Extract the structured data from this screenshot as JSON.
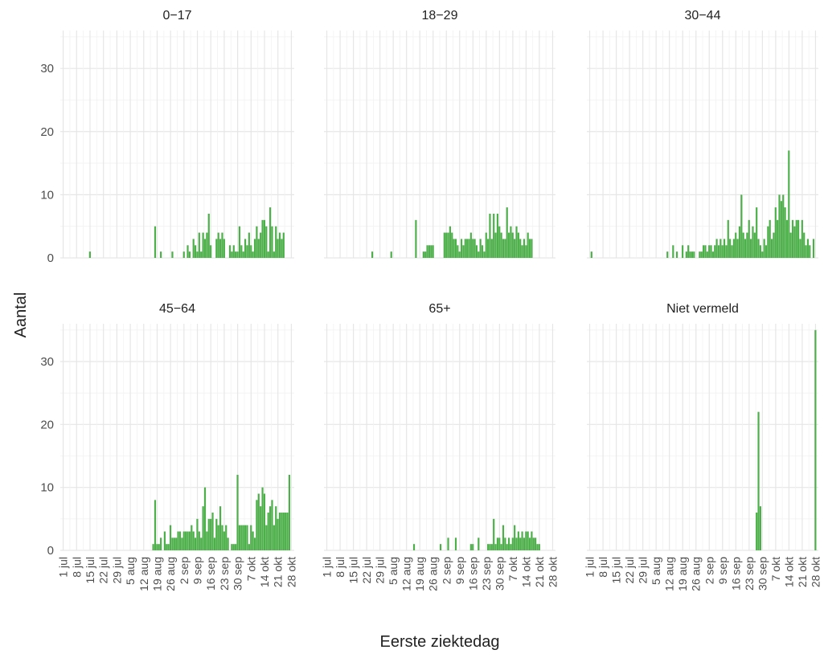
{
  "chart_data": {
    "type": "bar",
    "layout": "facet-grid-2x3",
    "xlabel": "Eerste ziektedag",
    "ylabel": "Aantal",
    "ylim": [
      0,
      36
    ],
    "y_ticks": [
      0,
      10,
      20,
      30
    ],
    "x_range_days": [
      0,
      119
    ],
    "x_tick_days": [
      0,
      7,
      14,
      21,
      28,
      35,
      42,
      49,
      56,
      63,
      70,
      77,
      84,
      91,
      98,
      105,
      112,
      119
    ],
    "x_tick_labels": [
      "1 jul",
      "8 jul",
      "15 jul",
      "22 jul",
      "29 jul",
      "5 aug",
      "12 aug",
      "19 aug",
      "26 aug",
      "2 sep",
      "9 sep",
      "16 sep",
      "23 sep",
      "30 sep",
      "7 okt",
      "14 okt",
      "21 okt",
      "28 okt"
    ],
    "grid": true,
    "bar_color": "#4daf4a",
    "x_start_date": "2020-07-01",
    "panels": [
      {
        "title": "0−17",
        "values": [
          0,
          0,
          0,
          0,
          0,
          0,
          0,
          0,
          0,
          0,
          0,
          0,
          0,
          0,
          1,
          0,
          0,
          0,
          0,
          0,
          0,
          0,
          0,
          0,
          0,
          0,
          0,
          0,
          0,
          0,
          0,
          0,
          0,
          0,
          0,
          0,
          0,
          0,
          0,
          0,
          0,
          0,
          0,
          0,
          0,
          0,
          0,
          0,
          5,
          0,
          0,
          1,
          0,
          0,
          0,
          0,
          0,
          1,
          0,
          0,
          0,
          0,
          0,
          1,
          0,
          2,
          1,
          0,
          3,
          2,
          1,
          4,
          1,
          4,
          3,
          4,
          7,
          2,
          0,
          0,
          3,
          4,
          3,
          4,
          3,
          0,
          0,
          2,
          1,
          2,
          1,
          1,
          5,
          2,
          1,
          3,
          2,
          4,
          2,
          1,
          3,
          5,
          3,
          4,
          6,
          6,
          5,
          1,
          8,
          5,
          1,
          5,
          3,
          4,
          3,
          4,
          0,
          0,
          0,
          0
        ]
      },
      {
        "title": "18−29",
        "values": [
          0,
          0,
          0,
          0,
          0,
          0,
          0,
          0,
          0,
          0,
          0,
          0,
          0,
          0,
          0,
          0,
          0,
          0,
          0,
          0,
          0,
          0,
          0,
          0,
          1,
          0,
          0,
          0,
          0,
          0,
          0,
          0,
          0,
          0,
          1,
          0,
          0,
          0,
          0,
          0,
          0,
          0,
          0,
          0,
          0,
          0,
          0,
          6,
          0,
          0,
          0,
          1,
          1,
          2,
          2,
          2,
          2,
          0,
          0,
          0,
          0,
          0,
          4,
          4,
          4,
          5,
          4,
          3,
          3,
          2,
          1,
          3,
          2,
          3,
          3,
          3,
          4,
          3,
          3,
          2,
          1,
          3,
          2,
          1,
          4,
          3,
          7,
          3,
          7,
          4,
          7,
          5,
          4,
          3,
          3,
          8,
          4,
          5,
          4,
          3,
          5,
          4,
          3,
          2,
          3,
          2,
          4,
          3,
          3,
          0,
          0,
          0,
          0,
          0,
          0,
          0,
          0,
          0,
          0,
          0
        ]
      },
      {
        "title": "30−44",
        "values": [
          0,
          1,
          0,
          0,
          0,
          0,
          0,
          0,
          0,
          0,
          0,
          0,
          0,
          0,
          0,
          0,
          0,
          0,
          0,
          0,
          0,
          0,
          0,
          0,
          0,
          0,
          0,
          0,
          0,
          0,
          0,
          0,
          0,
          0,
          0,
          0,
          0,
          0,
          0,
          0,
          0,
          1,
          0,
          0,
          2,
          0,
          1,
          0,
          0,
          2,
          0,
          1,
          2,
          1,
          1,
          1,
          0,
          0,
          1,
          1,
          2,
          2,
          1,
          2,
          2,
          1,
          2,
          3,
          2,
          3,
          2,
          3,
          2,
          6,
          3,
          2,
          3,
          4,
          3,
          5,
          10,
          4,
          3,
          4,
          6,
          3,
          5,
          4,
          8,
          3,
          2,
          1,
          3,
          2,
          5,
          6,
          3,
          4,
          8,
          6,
          10,
          9,
          10,
          8,
          6,
          17,
          4,
          6,
          5,
          6,
          6,
          3,
          6,
          4,
          2,
          3,
          2,
          0,
          3,
          0
        ]
      },
      {
        "title": "45−64",
        "values": [
          0,
          0,
          0,
          0,
          0,
          0,
          0,
          0,
          0,
          0,
          0,
          0,
          0,
          0,
          0,
          0,
          0,
          0,
          0,
          0,
          0,
          0,
          0,
          0,
          0,
          0,
          0,
          0,
          0,
          0,
          0,
          0,
          0,
          0,
          0,
          0,
          0,
          0,
          0,
          0,
          0,
          0,
          0,
          0,
          0,
          0,
          0,
          1,
          8,
          1,
          1,
          2,
          0,
          3,
          1,
          1,
          4,
          2,
          2,
          2,
          3,
          3,
          2,
          3,
          3,
          3,
          3,
          4,
          3,
          2,
          5,
          3,
          2,
          7,
          10,
          3,
          5,
          5,
          6,
          2,
          5,
          4,
          7,
          4,
          3,
          4,
          2,
          0,
          1,
          1,
          1,
          12,
          4,
          4,
          4,
          4,
          4,
          1,
          4,
          3,
          2,
          8,
          9,
          7,
          10,
          9,
          4,
          6,
          7,
          8,
          4,
          7,
          5,
          6,
          6,
          6,
          6,
          6,
          12,
          0
        ]
      },
      {
        "title": "65+",
        "values": [
          0,
          0,
          0,
          0,
          0,
          0,
          0,
          0,
          0,
          0,
          0,
          0,
          0,
          0,
          0,
          0,
          0,
          0,
          0,
          0,
          0,
          0,
          0,
          0,
          0,
          0,
          0,
          0,
          0,
          0,
          0,
          0,
          0,
          0,
          0,
          0,
          0,
          0,
          0,
          0,
          0,
          0,
          0,
          0,
          0,
          0,
          1,
          0,
          0,
          0,
          0,
          0,
          0,
          0,
          0,
          0,
          0,
          0,
          0,
          0,
          1,
          0,
          0,
          0,
          2,
          0,
          0,
          0,
          2,
          0,
          0,
          0,
          0,
          0,
          0,
          0,
          1,
          1,
          0,
          0,
          2,
          0,
          0,
          0,
          0,
          1,
          1,
          1,
          5,
          1,
          2,
          2,
          1,
          4,
          2,
          1,
          2,
          1,
          2,
          4,
          2,
          3,
          2,
          3,
          2,
          3,
          3,
          2,
          3,
          2,
          2,
          1,
          1,
          0,
          0,
          0,
          0,
          0,
          0,
          0
        ]
      },
      {
        "title": "Niet vermeld",
        "values": [
          0,
          0,
          0,
          0,
          0,
          0,
          0,
          0,
          0,
          0,
          0,
          0,
          0,
          0,
          0,
          0,
          0,
          0,
          0,
          0,
          0,
          0,
          0,
          0,
          0,
          0,
          0,
          0,
          0,
          0,
          0,
          0,
          0,
          0,
          0,
          0,
          0,
          0,
          0,
          0,
          0,
          0,
          0,
          0,
          0,
          0,
          0,
          0,
          0,
          0,
          0,
          0,
          0,
          0,
          0,
          0,
          0,
          0,
          0,
          0,
          0,
          0,
          0,
          0,
          0,
          0,
          0,
          0,
          0,
          0,
          0,
          0,
          0,
          0,
          0,
          0,
          0,
          0,
          0,
          0,
          0,
          0,
          0,
          0,
          0,
          0,
          0,
          0,
          6,
          22,
          7,
          0,
          0,
          0,
          0,
          0,
          0,
          0,
          0,
          0,
          0,
          0,
          0,
          0,
          0,
          0,
          0,
          0,
          0,
          0,
          0,
          0,
          0,
          0,
          0,
          0,
          0,
          0,
          0,
          35
        ]
      }
    ]
  }
}
